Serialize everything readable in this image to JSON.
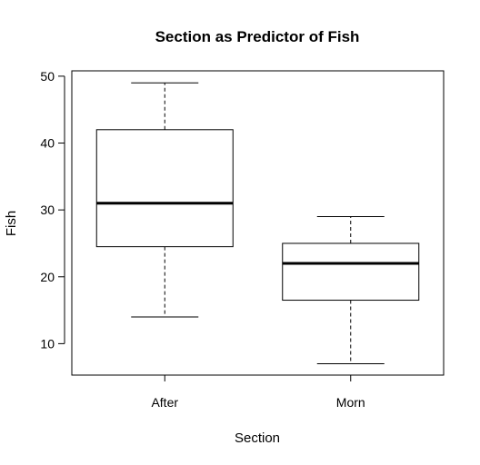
{
  "chart_data": {
    "type": "boxplot",
    "title": "Section as Predictor of Fish",
    "xlabel": "Section",
    "ylabel": "Fish",
    "categories": [
      "After",
      "Morn"
    ],
    "boxes": [
      {
        "category": "After",
        "whisker_low": 14,
        "q1": 24.5,
        "median": 31,
        "q3": 42,
        "whisker_high": 49
      },
      {
        "category": "Morn",
        "whisker_low": 7,
        "q1": 16.5,
        "median": 22,
        "q3": 25,
        "whisker_high": 29
      }
    ],
    "yticks": [
      10,
      20,
      30,
      40,
      50
    ],
    "ylim": [
      5.3,
      50.8
    ],
    "grid": false,
    "legend": "none"
  }
}
